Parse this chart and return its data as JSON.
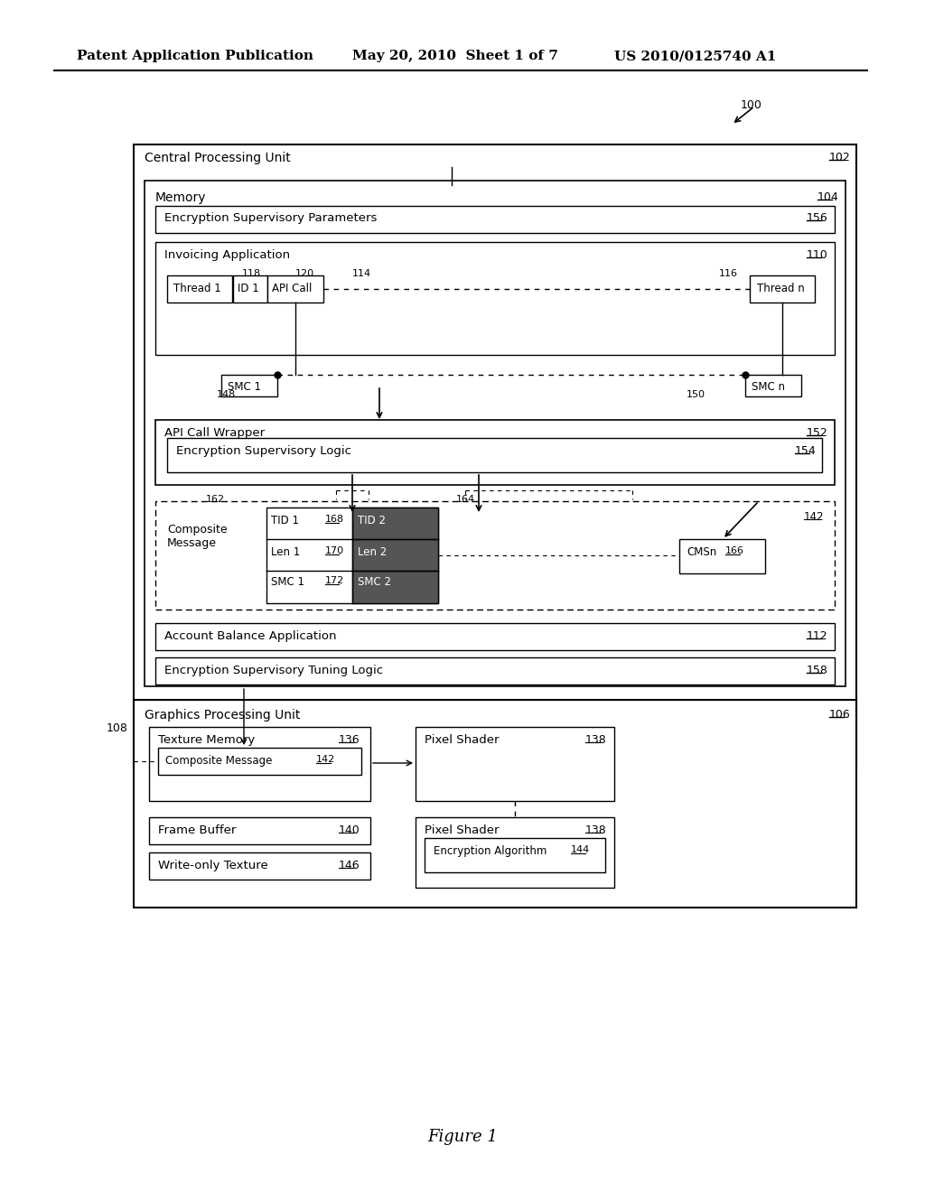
{
  "bg_color": "#ffffff",
  "header_left": "Patent Application Publication",
  "header_mid": "May 20, 2010  Sheet 1 of 7",
  "header_right": "US 2010/0125740 A1",
  "figure_label": "Figure 1",
  "ref_100": "100",
  "boxes": {
    "cpu": {
      "label": "Central Processing Unit",
      "ref": "102"
    },
    "memory": {
      "label": "Memory",
      "ref": "104"
    },
    "enc_sup_params": {
      "label": "Encryption Supervisory Parameters",
      "ref": "156"
    },
    "invoicing_app": {
      "label": "Invoicing Application",
      "ref": "110"
    },
    "thread1": {
      "label": "Thread 1"
    },
    "id1": {
      "label": "ID 1",
      "ref": "118"
    },
    "api_call": {
      "label": "API Call",
      "ref": "120"
    },
    "thread_n": {
      "label": "Thread n",
      "ref": "116"
    },
    "smc1_small": {
      "label": "SMC 1",
      "ref": "148"
    },
    "smc_n_small": {
      "label": "SMC n",
      "ref": "150"
    },
    "api_wrapper": {
      "label": "API Call Wrapper",
      "ref": "152"
    },
    "enc_sup_logic": {
      "label": "Encryption Supervisory Logic",
      "ref": "154"
    },
    "composite_msg_label": {
      "label": "Composite\nMessage"
    },
    "tid1": {
      "label": "TID 1",
      "ref": "168"
    },
    "len1": {
      "label": "Len 1",
      "ref": "170"
    },
    "smc1_cm": {
      "label": "SMC 1",
      "ref": "172"
    },
    "tid2": {
      "label": "TID 2"
    },
    "len2": {
      "label": "Len 2"
    },
    "smc2_cm": {
      "label": "SMC 2"
    },
    "cmsn": {
      "label": "CMSn",
      "ref": "166"
    },
    "ref_142": "142",
    "ref_162": "162",
    "ref_164": "164",
    "account_bal": {
      "label": "Account Balance Application",
      "ref": "112"
    },
    "enc_tuning": {
      "label": "Encryption Supervisory Tuning Logic",
      "ref": "158"
    },
    "gpu": {
      "label": "Graphics Processing Unit",
      "ref": "106"
    },
    "ref_108": "108",
    "texture_mem": {
      "label": "Texture Memory",
      "ref": "136"
    },
    "composite_msg_gpu": {
      "label": "Composite Message",
      "ref": "142"
    },
    "pixel_shader1": {
      "label": "Pixel Shader",
      "ref": "138"
    },
    "frame_buffer": {
      "label": "Frame Buffer",
      "ref": "140"
    },
    "write_only": {
      "label": "Write-only Texture",
      "ref": "146"
    },
    "pixel_shader2": {
      "label": "Pixel Shader",
      "ref": "138"
    },
    "enc_alg": {
      "label": "Encryption Algorithm",
      "ref": "144"
    },
    "ref_114": "114"
  }
}
